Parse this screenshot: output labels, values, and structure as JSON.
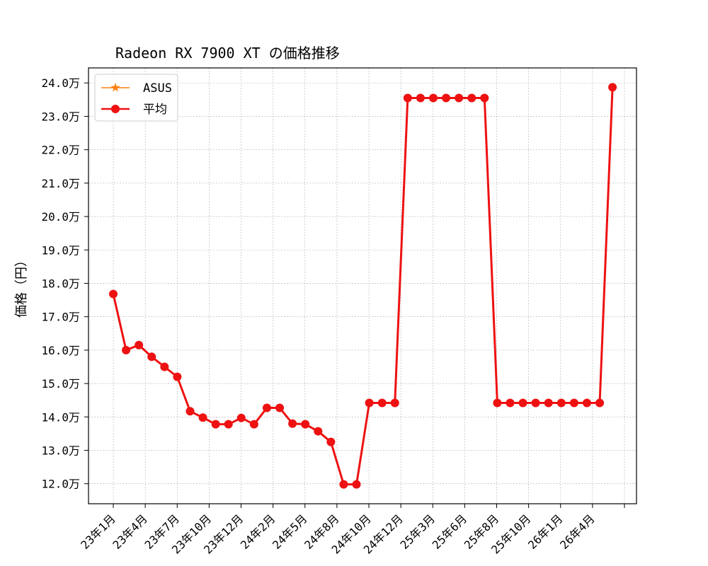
{
  "chart_data": {
    "type": "line",
    "title": "Radeon RX 7900 XT の価格推移",
    "xlabel": "",
    "ylabel": "価格（円）",
    "y_unit_suffix": "万",
    "ylim": [
      11.4,
      24.45
    ],
    "yticks": [
      12.0,
      13.0,
      14.0,
      15.0,
      16.0,
      17.0,
      18.0,
      19.0,
      20.0,
      21.0,
      22.0,
      23.0,
      24.0
    ],
    "ytick_labels": [
      "12.0万",
      "13.0万",
      "14.0万",
      "15.0万",
      "16.0万",
      "17.0万",
      "18.0万",
      "19.0万",
      "20.0万",
      "21.0万",
      "22.0万",
      "23.0万",
      "24.0万"
    ],
    "xtick_labels": [
      "23年1月",
      "23年4月",
      "23年7月",
      "23年10月",
      "23年12月",
      "24年2月",
      "24年5月",
      "24年8月",
      "24年10月",
      "24年12月",
      "25年3月",
      "25年6月",
      "25年8月",
      "25年10月",
      "26年1月",
      "26年4月"
    ],
    "grid": true,
    "legend_position": "top-left",
    "series": [
      {
        "name": "ASUS",
        "color": "#ff7f0e",
        "marker": "star",
        "values": []
      },
      {
        "name": "平均",
        "color": "#ee1111",
        "marker": "circle",
        "values": [
          17.68,
          16.0,
          16.15,
          15.8,
          15.5,
          15.2,
          14.17,
          13.98,
          13.78,
          13.78,
          13.97,
          13.78,
          14.27,
          14.27,
          13.8,
          13.78,
          13.57,
          13.25,
          11.98,
          11.98,
          14.42,
          14.42,
          14.42,
          23.55,
          23.55,
          23.55,
          23.55,
          23.55,
          23.55,
          23.55,
          14.42,
          14.42,
          14.42,
          14.42,
          14.42,
          14.42,
          14.42,
          14.42,
          14.42,
          23.87
        ]
      }
    ]
  }
}
